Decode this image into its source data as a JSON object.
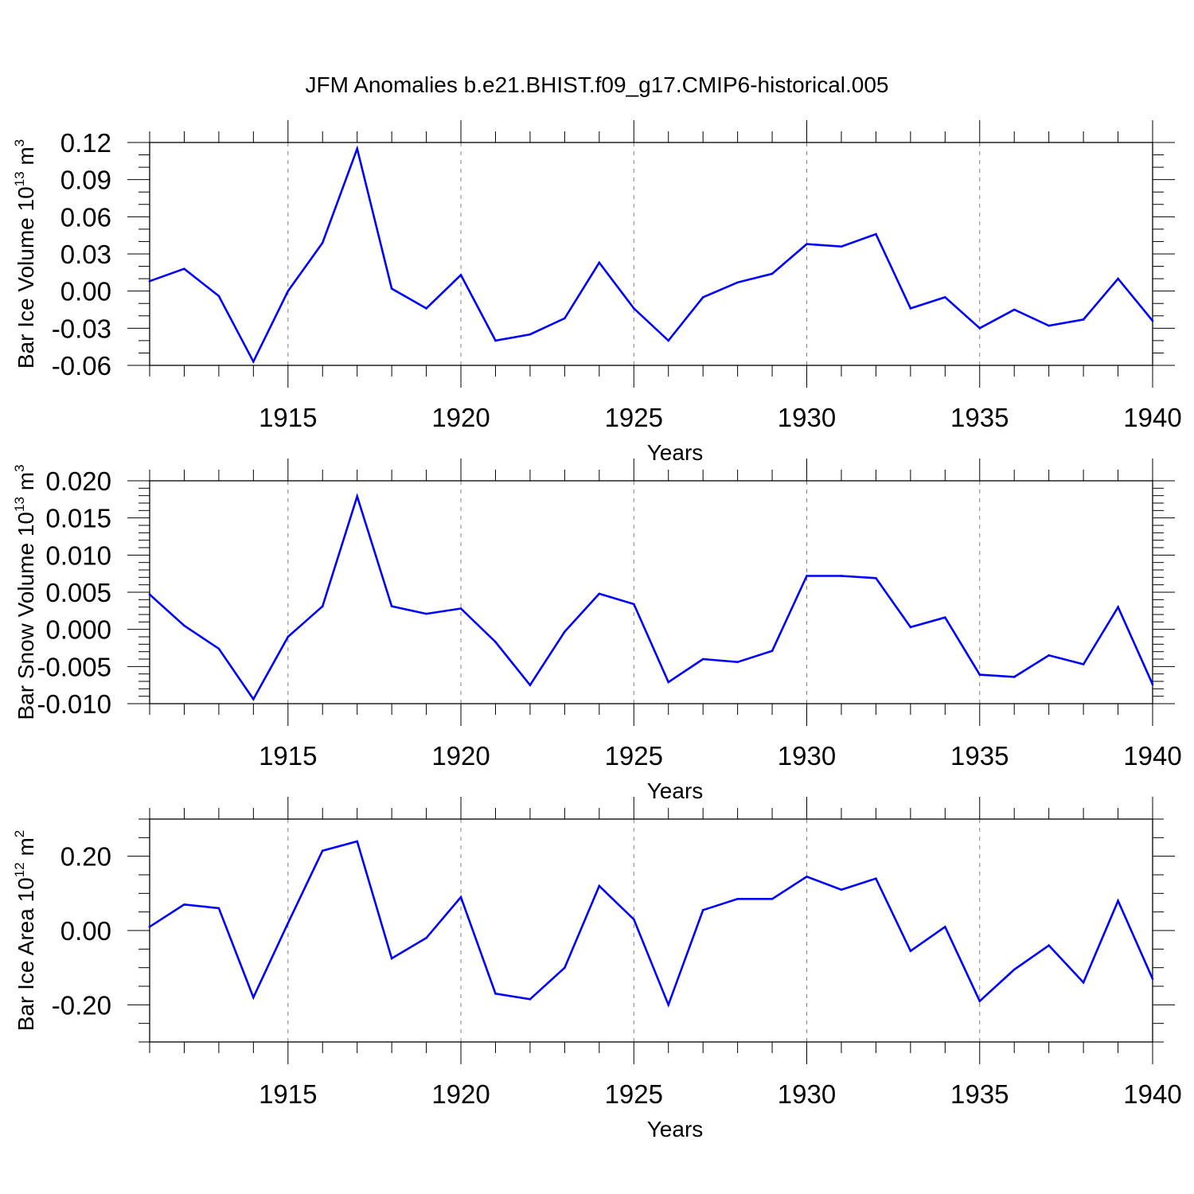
{
  "title": "JFM Anomalies b.e21.BHIST.f09_g17.CMIP6-historical.005",
  "colors": {
    "line": "#0000ff",
    "axis": "#000000",
    "grid": "#808080"
  },
  "chart_data": [
    {
      "type": "line",
      "name": "ice-volume",
      "ylabel": {
        "text": "Bar Ice Volume 10",
        "exp": "13",
        "unit": " m",
        "unit_exp": "3"
      },
      "xlabel": "Years",
      "xlim": [
        1911,
        1940
      ],
      "ylim": [
        -0.06,
        0.12
      ],
      "yticks": [
        -0.06,
        -0.03,
        0.0,
        0.03,
        0.06,
        0.09,
        0.12
      ],
      "yticklabels": [
        "-0.06",
        "-0.03",
        "0.00",
        "0.03",
        "0.06",
        "0.09",
        "0.12"
      ],
      "yminor_step": 0.01,
      "xticks": [
        1915,
        1920,
        1925,
        1930,
        1935,
        1940
      ],
      "xticklabels": [
        "1915",
        "1920",
        "1925",
        "1930",
        "1935",
        "1940"
      ],
      "x": [
        1911,
        1912,
        1913,
        1914,
        1915,
        1916,
        1917,
        1918,
        1919,
        1920,
        1921,
        1922,
        1923,
        1924,
        1925,
        1926,
        1927,
        1928,
        1929,
        1930,
        1931,
        1932,
        1933,
        1934,
        1935,
        1936,
        1937,
        1938,
        1939,
        1940
      ],
      "values": [
        0.008,
        0.018,
        -0.004,
        -0.057,
        0.0,
        0.039,
        0.115,
        0.002,
        -0.014,
        0.013,
        -0.04,
        -0.035,
        -0.022,
        0.023,
        -0.014,
        -0.04,
        -0.005,
        0.007,
        0.014,
        0.038,
        0.036,
        0.046,
        -0.014,
        -0.005,
        -0.03,
        -0.015,
        -0.028,
        -0.023,
        0.01,
        -0.024
      ]
    },
    {
      "type": "line",
      "name": "snow-volume",
      "ylabel": {
        "text": "Bar Snow Volume 10",
        "exp": "13",
        "unit": " m",
        "unit_exp": "3"
      },
      "xlabel": "Years",
      "xlim": [
        1911,
        1940
      ],
      "ylim": [
        -0.01,
        0.02
      ],
      "yticks": [
        -0.01,
        -0.005,
        0.0,
        0.005,
        0.01,
        0.015,
        0.02
      ],
      "yticklabels": [
        "-0.010",
        "-0.005",
        "0.000",
        "0.005",
        "0.010",
        "0.015",
        "0.020"
      ],
      "yminor_step": 0.001,
      "xticks": [
        1915,
        1920,
        1925,
        1930,
        1935,
        1940
      ],
      "xticklabels": [
        "1915",
        "1920",
        "1925",
        "1930",
        "1935",
        "1940"
      ],
      "x": [
        1911,
        1912,
        1913,
        1914,
        1915,
        1916,
        1917,
        1918,
        1919,
        1920,
        1921,
        1922,
        1923,
        1924,
        1925,
        1926,
        1927,
        1928,
        1929,
        1930,
        1931,
        1932,
        1933,
        1934,
        1935,
        1936,
        1937,
        1938,
        1939,
        1940
      ],
      "values": [
        0.0047,
        0.0005,
        -0.0026,
        -0.0094,
        -0.001,
        0.0031,
        0.0179,
        0.0031,
        0.0021,
        0.0028,
        -0.0017,
        -0.0075,
        -0.0003,
        0.0048,
        0.0034,
        -0.0071,
        -0.004,
        -0.0044,
        -0.0029,
        0.0072,
        0.0072,
        0.0069,
        0.0003,
        0.0016,
        -0.0061,
        -0.0064,
        -0.0035,
        -0.0047,
        0.003,
        -0.0074
      ]
    },
    {
      "type": "line",
      "name": "ice-area",
      "ylabel": {
        "text": "Bar Ice Area 10",
        "exp": "12",
        "unit": " m",
        "unit_exp": "2"
      },
      "xlabel": "Years",
      "xlim": [
        1911,
        1940
      ],
      "ylim": [
        -0.3,
        0.3
      ],
      "yticks": [
        -0.2,
        0.0,
        0.2
      ],
      "yticklabels": [
        "-0.20",
        "0.00",
        "0.20"
      ],
      "yminor_step": 0.05,
      "xticks": [
        1915,
        1920,
        1925,
        1930,
        1935,
        1940
      ],
      "xticklabels": [
        "1915",
        "1920",
        "1925",
        "1930",
        "1935",
        "1940"
      ],
      "x": [
        1911,
        1912,
        1913,
        1914,
        1915,
        1916,
        1917,
        1918,
        1919,
        1920,
        1921,
        1922,
        1923,
        1924,
        1925,
        1926,
        1927,
        1928,
        1929,
        1930,
        1931,
        1932,
        1933,
        1934,
        1935,
        1936,
        1937,
        1938,
        1939,
        1940
      ],
      "values": [
        0.01,
        0.07,
        0.06,
        -0.18,
        0.02,
        0.215,
        0.24,
        -0.075,
        -0.02,
        0.09,
        -0.17,
        -0.185,
        -0.1,
        0.12,
        0.03,
        -0.2,
        0.055,
        0.085,
        0.085,
        0.145,
        0.11,
        0.14,
        -0.055,
        0.01,
        -0.19,
        -0.105,
        -0.04,
        -0.14,
        0.08,
        -0.13
      ]
    }
  ]
}
